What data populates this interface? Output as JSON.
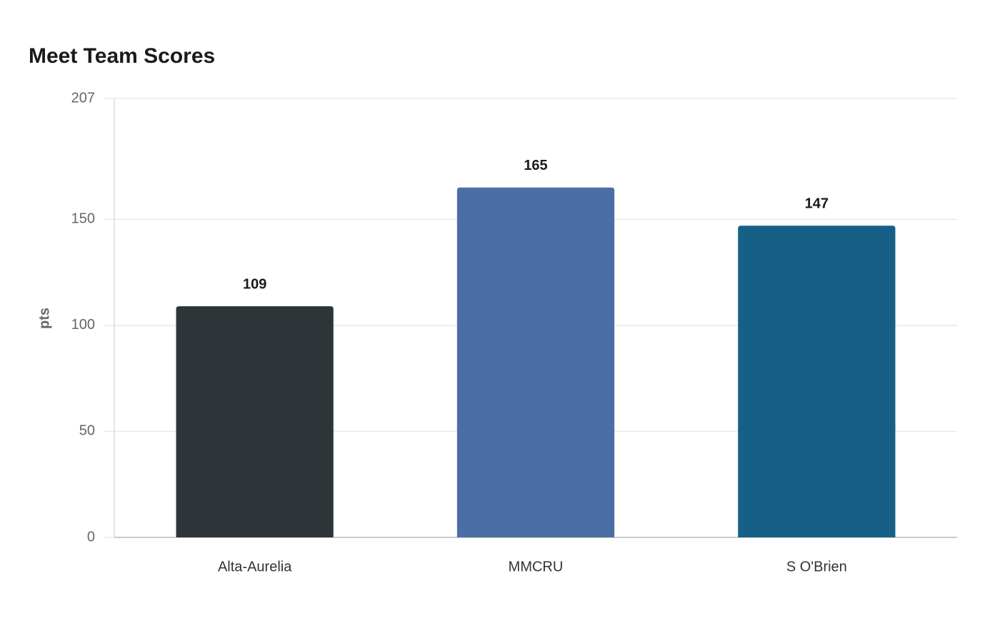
{
  "chart_data": {
    "type": "bar",
    "title": "Meet Team Scores",
    "y_label": "pts",
    "categories": [
      "Alta-Aurelia",
      "MMCRU",
      "S O'Brien"
    ],
    "values": [
      109,
      165,
      147
    ],
    "colors": [
      "#2e3538",
      "#4a6fa5",
      "#166088"
    ],
    "ylim": [
      0,
      207
    ],
    "yticks": [
      0,
      50,
      100,
      150,
      207
    ],
    "grid": true
  }
}
